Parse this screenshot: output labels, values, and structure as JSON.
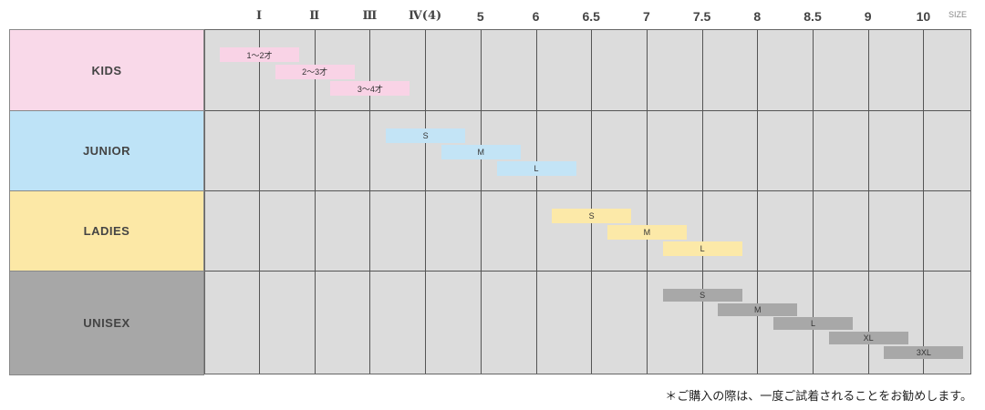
{
  "chart_data": {
    "type": "table",
    "xlabel": "SIZE",
    "ticks": [
      "Ⅰ",
      "Ⅱ",
      "Ⅲ",
      "Ⅳ(4)",
      "5",
      "6",
      "6.5",
      "7",
      "7.5",
      "8",
      "8.5",
      "9",
      "10"
    ],
    "categories": [
      {
        "name": "KIDS",
        "color": "#f9d9e9",
        "bar_color": "#f9d3e6",
        "bars": [
          {
            "label": "1～2才",
            "size": "Ⅰ"
          },
          {
            "label": "2～3才",
            "size": "Ⅱ"
          },
          {
            "label": "3～4才",
            "size": "Ⅲ"
          }
        ]
      },
      {
        "name": "JUNIOR",
        "color": "#bee3f7",
        "bar_color": "#c3e4f6",
        "bars": [
          {
            "label": "S",
            "size": "Ⅳ(4)"
          },
          {
            "label": "M",
            "size": "5"
          },
          {
            "label": "L",
            "size": "6"
          }
        ]
      },
      {
        "name": "LADIES",
        "color": "#fce8a6",
        "bar_color": "#fce9a8",
        "bars": [
          {
            "label": "S",
            "size": "6.5"
          },
          {
            "label": "M",
            "size": "7"
          },
          {
            "label": "L",
            "size": "7.5"
          }
        ]
      },
      {
        "name": "UNISEX",
        "color": "#a7a7a7",
        "bar_color": "#a8a8a8",
        "bars": [
          {
            "label": "S",
            "size": "7.5"
          },
          {
            "label": "M",
            "size": "8"
          },
          {
            "label": "L",
            "size": "8.5"
          },
          {
            "label": "XL",
            "size": "9"
          },
          {
            "label": "3XL",
            "size": "10"
          }
        ]
      }
    ],
    "grid_color": "#dcdcdc"
  },
  "note": "＊ご購入の際は、一度ご試着されることをお勧めします。"
}
